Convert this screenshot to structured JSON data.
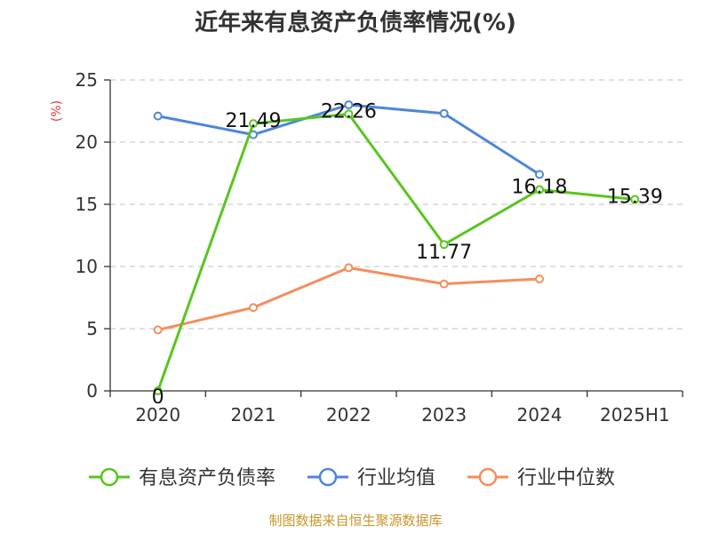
{
  "chart_data": {
    "type": "line",
    "title": "近年来有息资产负债率情况(%)",
    "ylabel": "(%)",
    "xlabel": "",
    "categories": [
      "2020",
      "2021",
      "2022",
      "2023",
      "2024",
      "2025H1"
    ],
    "yticks": [
      "0",
      "5",
      "10",
      "15",
      "20",
      "25"
    ],
    "ylim": [
      0,
      25
    ],
    "grid": true,
    "legend_position": "bottom",
    "series": [
      {
        "name": "有息资产负债率",
        "color": "#5ac51f",
        "values": [
          0,
          21.49,
          22.26,
          11.77,
          16.18,
          15.39
        ],
        "labels": [
          "0",
          "21.49",
          "22.26",
          "11.77",
          "16.18",
          "15.39"
        ]
      },
      {
        "name": "行业均值",
        "color": "#4f86d8",
        "values": [
          22.1,
          20.6,
          23.0,
          22.3,
          17.4,
          null
        ]
      },
      {
        "name": "行业中位数",
        "color": "#f58d5c",
        "values": [
          4.9,
          6.7,
          9.9,
          8.6,
          9.0,
          null
        ]
      }
    ]
  },
  "source": "制图数据来自恒生聚源数据库",
  "colors": {
    "ylabel": "#e23b3b",
    "source": "#c8962e",
    "grid": "#cccccc",
    "axis": "#333333"
  }
}
